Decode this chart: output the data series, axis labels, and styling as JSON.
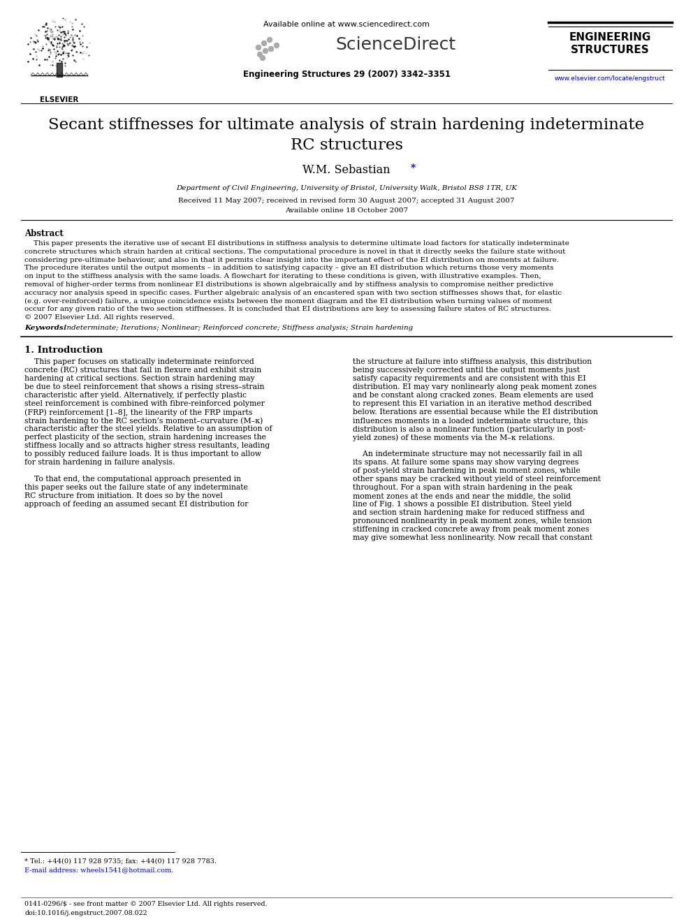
{
  "bg_color": "#ffffff",
  "header_available": "Available online at www.sciencedirect.com",
  "header_sciencedirect": "ScienceDirect",
  "header_journal": "Engineering Structures 29 (2007) 3342–3351",
  "header_eng1": "ENGINEERING",
  "header_eng2": "STRUCTURES",
  "header_url": "www.elsevier.com/locate/engstruct",
  "header_elsevier": "ELSEVIER",
  "title_line1": "Secant stiffnesses for ultimate analysis of strain hardening indeterminate",
  "title_line2": "RC structures",
  "author": "W.M. Sebastian",
  "affiliation": "Department of Civil Engineering, University of Bristol, University Walk, Bristol BS8 1TR, UK",
  "date_line1": "Received 11 May 2007; received in revised form 30 August 2007; accepted 31 August 2007",
  "date_line2": "Available online 18 October 2007",
  "abstract_title": "Abstract",
  "abstract_indent": "    This paper presents the iterative use of secant EI distributions in stiffness analysis to determine ultimate load factors for statically indeterminate",
  "abstract_lines": [
    "    This paper presents the iterative use of secant EI distributions in stiffness analysis to determine ultimate load factors for statically indeterminate",
    "concrete structures which strain harden at critical sections. The computational procedure is novel in that it directly seeks the failure state without",
    "considering pre-ultimate behaviour, and also in that it permits clear insight into the important effect of the EI distribution on moments at failure.",
    "The procedure iterates until the output moments – in addition to satisfying capacity – give an EI distribution which returns those very moments",
    "on input to the stiffness analysis with the same loads. A flowchart for iterating to these conditions is given, with illustrative examples. Then,",
    "removal of higher-order terms from nonlinear EI distributions is shown algebraically and by stiffness analysis to compromise neither predictive",
    "accuracy nor analysis speed in specific cases. Further algebraic analysis of an encastered span with two section stiffnesses shows that, for elastic",
    "(e.g. over-reinforced) failure, a unique coincidence exists between the moment diagram and the EI distribution when turning values of moment",
    "occur for any given ratio of the two section stiffnesses. It is concluded that EI distributions are key to assessing failure states of RC structures.",
    "© 2007 Elsevier Ltd. All rights reserved."
  ],
  "kw_label": "Keywords:",
  "kw_text": " Indeterminate; Iterations; Nonlinear; Reinforced concrete; Stiffness analysis; Strain hardening",
  "sec1_title": "1. Introduction",
  "left_col_lines": [
    "    This paper focuses on statically indeterminate reinforced",
    "concrete (RC) structures that fail in flexure and exhibit strain",
    "hardening at critical sections. Section strain hardening may",
    "be due to steel reinforcement that shows a rising stress–strain",
    "characteristic after yield. Alternatively, if perfectly plastic",
    "steel reinforcement is combined with fibre-reinforced polymer",
    "(FRP) reinforcement [1–8], the linearity of the FRP imparts",
    "strain hardening to the RC section’s moment–curvature (M–κ)",
    "characteristic after the steel yields. Relative to an assumption of",
    "perfect plasticity of the section, strain hardening increases the",
    "stiffness locally and so attracts higher stress resultants, leading",
    "to possibly reduced failure loads. It is thus important to allow",
    "for strain hardening in failure analysis.",
    "",
    "    To that end, the computational approach presented in",
    "this paper seeks out the failure state of any indeterminate",
    "RC structure from initiation. It does so by the novel",
    "approach of feeding an assumed secant EI distribution for"
  ],
  "right_col_lines": [
    "the structure at failure into stiffness analysis, this distribution",
    "being successively corrected until the output moments just",
    "satisfy capacity requirements and are consistent with this EI",
    "distribution. EI may vary nonlinearly along peak moment zones",
    "and be constant along cracked zones. Beam elements are used",
    "to represent this EI variation in an iterative method described",
    "below. Iterations are essential because while the EI distribution",
    "influences moments in a loaded indeterminate structure, this",
    "distribution is also a nonlinear function (particularly in post-",
    "yield zones) of these moments via the M–κ relations.",
    "",
    "    An indeterminate structure may not necessarily fail in all",
    "its spans. At failure some spans may show varying degrees",
    "of post-yield strain hardening in peak moment zones, while",
    "other spans may be cracked without yield of steel reinforcement",
    "throughout. For a span with strain hardening in the peak",
    "moment zones at the ends and near the middle, the solid",
    "line of Fig. 1 shows a possible EI distribution. Steel yield",
    "and section strain hardening make for reduced stiffness and",
    "pronounced nonlinearity in peak moment zones, while tension",
    "stiffening in cracked concrete away from peak moment zones",
    "may give somewhat less nonlinearity. Now recall that constant"
  ],
  "footnote1": "* Tel.: +44(0) 117 928 9735; fax: +44(0) 117 928 7783.",
  "footnote2": "E-mail address: wheels1541@hotmail.com.",
  "footer1": "0141-0296/$ - see front matter © 2007 Elsevier Ltd. All rights reserved.",
  "footer2": "doi:10.1016/j.engstruct.2007.08.022"
}
